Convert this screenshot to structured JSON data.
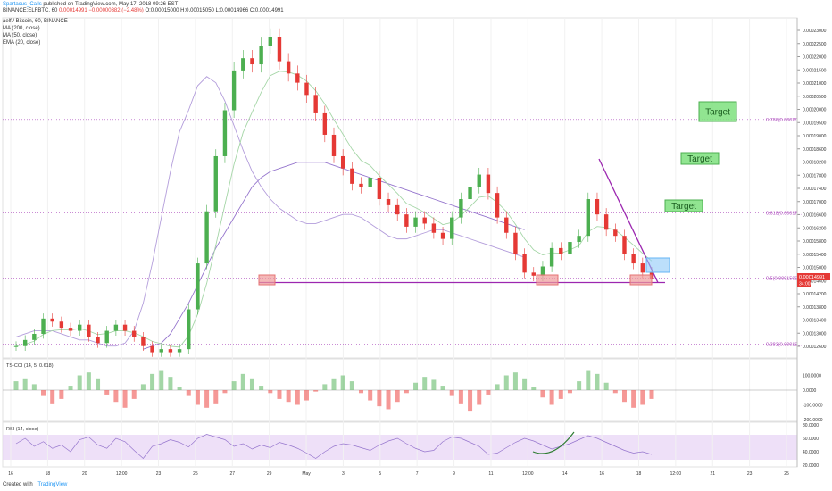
{
  "header": {
    "author": "Spartacus_Calls",
    "published": "published on TradingView.com, May 17, 2018 09:26 EST",
    "symbol": "BINANCE:ELFBTC, 60",
    "last": "0.00014991",
    "change": "−0.00000382 (−2.48%)",
    "ohlc": "O:0.00015000 H:0.00015050 L:0.00014966 C:0.00014991",
    "legend": [
      "aelf / Bitcoin, 60, BINANCE",
      "MA (200, close)",
      "MA (50, close)",
      "EMA (20, close)"
    ]
  },
  "footer": {
    "created": "Created with",
    "brand": "TradingView"
  },
  "colors": {
    "up": "#4caf50",
    "down": "#e53935",
    "ma200": "#9575cd",
    "ma50": "#b39ddb",
    "ema20": "#a5d6a7",
    "fib": "#ab47bc",
    "target_bg": "#7ee07e",
    "rsi_band": "#e8d5f5",
    "tsi_up": "#66bb6a",
    "tsi_down": "#ef5350"
  },
  "chart_data": [
    {
      "type": "candlestick",
      "title": "aelf / Bitcoin, 60, BINANCE",
      "ylim": [
        0.000125,
        0.000234
      ],
      "y_ticks": [
        "0.00023000",
        "0.00022500",
        "0.00022000",
        "0.00021500",
        "0.00021000",
        "0.00020500",
        "0.00020000",
        "0.00019500",
        "0.00019000",
        "0.00018600",
        "0.00018200",
        "0.00017800",
        "0.00017400",
        "0.00017000",
        "0.00016600",
        "0.00016200",
        "0.00015800",
        "0.00015400",
        "0.00015000",
        "0.00014600",
        "0.00014200",
        "0.00013800",
        "0.00013400",
        "0.00013000",
        "0.00012600"
      ],
      "x_ticks": [
        "16",
        "18",
        "20",
        "12:00",
        "23",
        "25",
        "27",
        "29",
        "May",
        "3",
        "5",
        "7",
        "9",
        "11",
        "12:00",
        "14",
        "16",
        "18",
        "12:00",
        "21",
        "23",
        "25"
      ],
      "close_series": [
        0.000128,
        0.00013,
        0.000132,
        0.000137,
        0.000136,
        0.000134,
        0.000133,
        0.000135,
        0.000131,
        0.000129,
        0.000133,
        0.000135,
        0.000133,
        0.000131,
        0.000128,
        0.000126,
        0.000127,
        0.000126,
        0.000127,
        0.00014,
        0.000155,
        0.000172,
        0.00019,
        0.000205,
        0.000218,
        0.000222,
        0.00022,
        0.000226,
        0.000229,
        0.000221,
        0.000217,
        0.000214,
        0.00021,
        0.000204,
        0.000197,
        0.00019,
        0.000186,
        0.000181,
        0.00018,
        0.000183,
        0.000176,
        0.000174,
        0.000171,
        0.000167,
        0.00017,
        0.000168,
        0.000165,
        0.000163,
        0.00017,
        0.000176,
        0.00018,
        0.000184,
        0.000178,
        0.00017,
        0.000165,
        0.000158,
        0.000152,
        0.000151,
        0.000154,
        0.00016,
        0.000158,
        0.000162,
        0.000164,
        0.000176,
        0.000171,
        0.000166,
        0.000164,
        0.000158,
        0.000155,
        0.000152,
        0.00015
      ],
      "ma200_series": [
        null,
        null,
        null,
        null,
        null,
        null,
        null,
        null,
        null,
        null,
        null,
        null,
        null,
        null,
        0.000127,
        0.000128,
        0.000129,
        0.000132,
        0.000137,
        0.000142,
        0.000148,
        0.000154,
        0.00016,
        0.000165,
        0.00017,
        0.000175,
        0.00018,
        0.000183,
        0.000185,
        0.000186,
        0.000187,
        0.000188,
        0.000188,
        0.000188,
        0.000188,
        0.000187,
        0.000186,
        0.000185,
        0.000184,
        0.000183,
        0.000182,
        0.000181,
        0.00018,
        0.000179,
        0.000178,
        0.000177,
        0.000176,
        0.000175,
        0.000174,
        0.000173,
        0.000172,
        0.000171,
        0.00017,
        0.000169,
        0.000168,
        0.000167,
        0.000166
      ],
      "ma50_series": [
        0.000131,
        0.000132,
        0.000133,
        0.000133,
        0.000133,
        0.000132,
        0.000131,
        0.00013,
        0.00013,
        0.000129,
        0.000128,
        0.000128,
        0.000129,
        0.000133,
        0.000142,
        0.000155,
        0.00017,
        0.000185,
        0.000198,
        0.000205,
        0.000213,
        0.000216,
        0.000214,
        0.000208,
        0.0002,
        0.000192,
        0.000185,
        0.00018,
        0.000176,
        0.000173,
        0.000171,
        0.000169,
        0.000168,
        0.000168,
        0.000169,
        0.00017,
        0.000171,
        0.000171,
        0.00017,
        0.000168,
        0.000166,
        0.000164,
        0.000163,
        0.000163,
        0.000164,
        0.000165,
        0.000166,
        0.000166,
        0.000165,
        0.000164,
        0.000163,
        0.000162,
        0.000161,
        0.00016,
        0.000159,
        0.000158,
        0.000157
      ],
      "fib_levels": [
        {
          "label": "0.786(0.00020...",
          "value": 0.000202
        },
        {
          "label": "0.618(0.00017...",
          "value": 0.0001715
        },
        {
          "label": "0.5(0.0001502...",
          "value": 0.0001502
        },
        {
          "label": "0.382(0.00012...",
          "value": 0.0001287
        }
      ],
      "targets": [
        "Target",
        "Target",
        "Target"
      ],
      "price_tag": "0.00014991",
      "countdown": "34:00"
    },
    {
      "type": "histogram",
      "title": "TS-CCI (14, 5, 0.618)",
      "ylim": [
        -200,
        200
      ],
      "y_ticks": [
        "100.0000",
        "0.0000",
        "-100.0000",
        "-200.0000"
      ],
      "values": [
        60,
        80,
        40,
        -40,
        -90,
        -60,
        30,
        100,
        120,
        80,
        -30,
        -80,
        -120,
        -60,
        40,
        110,
        130,
        90,
        20,
        -40,
        -100,
        -120,
        -90,
        -20,
        60,
        110,
        80,
        30,
        -20,
        -60,
        -80,
        -100,
        -70,
        -10,
        40,
        80,
        100,
        60,
        -20,
        -70,
        -110,
        -130,
        -80,
        -20,
        50,
        90,
        70,
        30,
        -40,
        -90,
        -140,
        -100,
        -30,
        40,
        100,
        120,
        80,
        20,
        -50,
        -100,
        -60,
        -20,
        60,
        130,
        110,
        50,
        -20,
        -80,
        -120,
        -100,
        -60
      ]
    },
    {
      "type": "line",
      "title": "RSI (14, close)",
      "ylim": [
        20,
        80
      ],
      "y_ticks": [
        "80.0000",
        "60.0000",
        "40.0000",
        "20.0000"
      ],
      "values": [
        52,
        60,
        48,
        55,
        45,
        50,
        40,
        58,
        62,
        50,
        45,
        60,
        55,
        42,
        30,
        48,
        52,
        58,
        54,
        47,
        60,
        66,
        62,
        58,
        48,
        52,
        44,
        50,
        46,
        54,
        50,
        45,
        38,
        30,
        40,
        48,
        52,
        50,
        46,
        42,
        50,
        56,
        60,
        52,
        45,
        40,
        42,
        55,
        62,
        60,
        54,
        48,
        36,
        38,
        46,
        54,
        60,
        56,
        50,
        44,
        48,
        52,
        58,
        64,
        60,
        54,
        48,
        42,
        38,
        40,
        36
      ]
    }
  ]
}
